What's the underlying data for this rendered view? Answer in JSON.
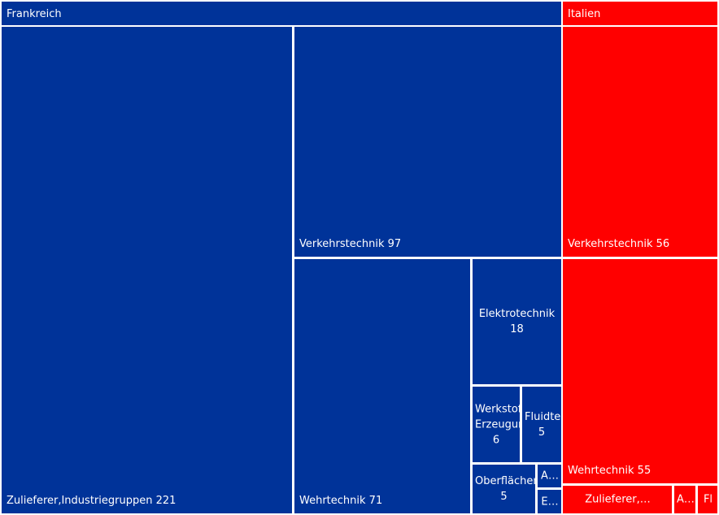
{
  "chart_data": {
    "type": "treemap",
    "groups": [
      {
        "name": "Frankreich",
        "color": "#003399",
        "items": [
          {
            "label": "Zulieferer,Industriegruppen",
            "value": 221
          },
          {
            "label": "Verkehrstechnik",
            "value": 97
          },
          {
            "label": "Wehrtechnik",
            "value": 71
          },
          {
            "label": "Elektrotechnik",
            "value": 18
          },
          {
            "label": "Werkstoff-Erzeugung",
            "value": 6
          },
          {
            "label": "Fluidtechnik",
            "value": 5
          },
          {
            "label": "Oberflächentechnik",
            "value": 5
          },
          {
            "label": "A…",
            "value": null
          },
          {
            "label": "E…",
            "value": null
          }
        ]
      },
      {
        "name": "Italien",
        "color": "#ff0000",
        "items": [
          {
            "label": "Verkehrstechnik",
            "value": 56
          },
          {
            "label": "Wehrtechnik",
            "value": 55
          },
          {
            "label": "Zulieferer,…",
            "value": null
          },
          {
            "label": "A…",
            "value": null
          },
          {
            "label": "Fl",
            "value": null
          }
        ]
      }
    ]
  }
}
